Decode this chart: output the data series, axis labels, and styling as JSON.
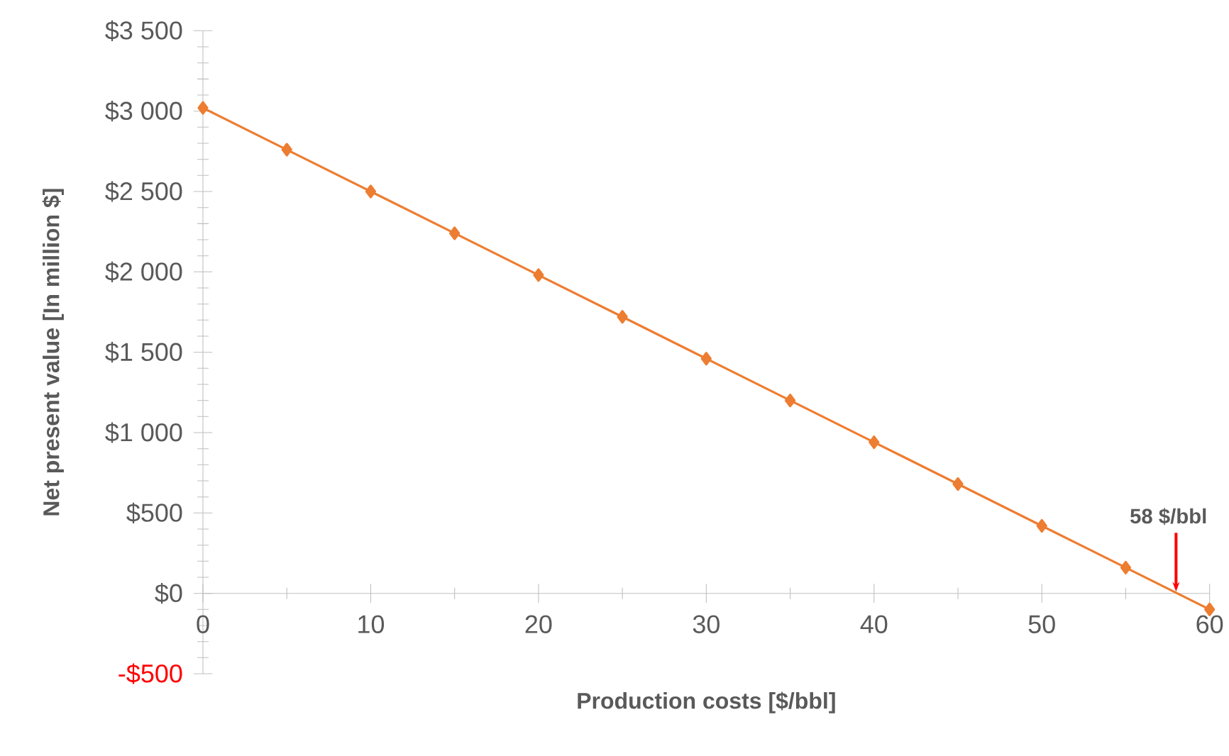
{
  "chart_data": {
    "type": "line",
    "xlabel": "Production costs [$/bbl]",
    "ylabel": "Net present value [In million $]",
    "x": [
      0,
      5,
      10,
      15,
      20,
      25,
      30,
      35,
      40,
      45,
      50,
      55,
      60
    ],
    "series": [
      {
        "color": "#ed7d31",
        "values": [
          3020,
          2760,
          2500,
          2240,
          1980,
          1720,
          1460,
          1200,
          940,
          680,
          420,
          160,
          -100
        ]
      }
    ],
    "xlim": [
      0,
      60
    ],
    "ylim": [
      -500,
      3500
    ],
    "xticks": [
      0,
      10,
      20,
      30,
      40,
      50,
      60
    ],
    "yticks": [
      {
        "value": -500,
        "label": "-$500"
      },
      {
        "value": 0,
        "label": "$0"
      },
      {
        "value": 500,
        "label": "$500"
      },
      {
        "value": 1000,
        "label": "$1 000"
      },
      {
        "value": 1500,
        "label": "$1 500"
      },
      {
        "value": 2000,
        "label": "$2 000"
      },
      {
        "value": 2500,
        "label": "$2 500"
      },
      {
        "value": 3000,
        "label": "$3 000"
      },
      {
        "value": 3500,
        "label": "$3 500"
      }
    ],
    "annotations": [
      {
        "text": "58 $/bbl",
        "x": 58,
        "y": 0
      }
    ],
    "grid": false,
    "legend": false,
    "marker": "diamond",
    "line_style": "solid"
  }
}
